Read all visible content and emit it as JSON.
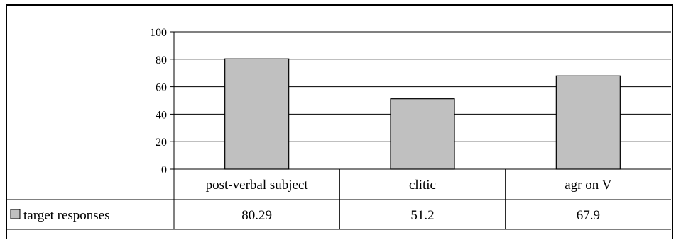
{
  "chart_data": {
    "type": "bar",
    "categories": [
      "post-verbal subject",
      "clitic",
      "agr on V"
    ],
    "series": [
      {
        "name": "target responses",
        "values": [
          80.29,
          51.2,
          67.9
        ],
        "color": "#c0c0c0"
      }
    ],
    "ylim": [
      0,
      100
    ],
    "yticks": [
      0,
      20,
      40,
      60,
      80,
      100
    ],
    "grid": true,
    "data_table": true,
    "value_labels": [
      "80.29",
      "51.2",
      "67.9"
    ]
  }
}
